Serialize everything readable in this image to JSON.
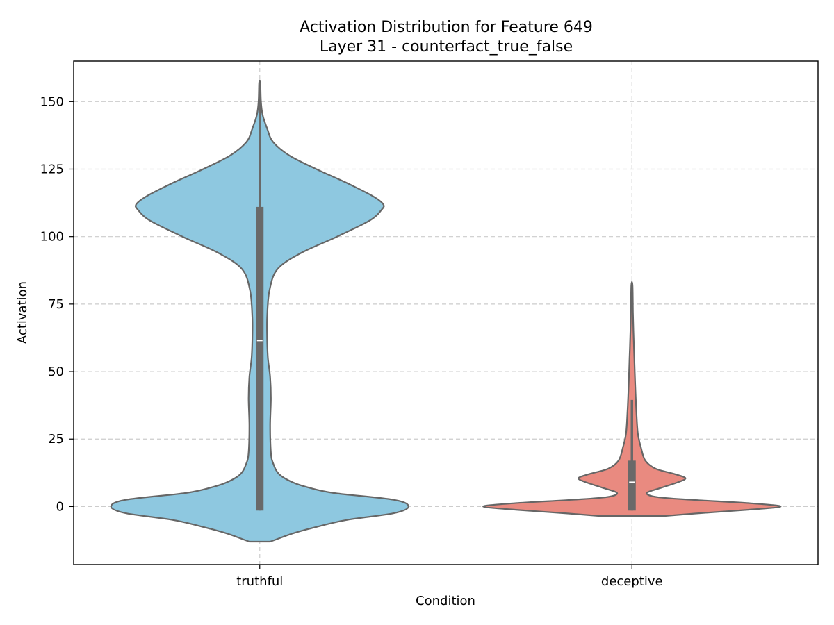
{
  "chart_data": {
    "type": "violin",
    "title": "Activation Distribution for Feature 649",
    "subtitle": "Layer 31 - counterfact_true_false",
    "xlabel": "Condition",
    "ylabel": "Activation",
    "categories": [
      "truthful",
      "deceptive"
    ],
    "ylim": [
      -21.5,
      165
    ],
    "yticks": [
      0,
      25,
      50,
      75,
      100,
      125,
      150
    ],
    "grid": true,
    "colors": {
      "truthful": "#8ec8e0",
      "deceptive": "#e98a80",
      "box": "#696969",
      "outline": "#666666"
    },
    "series": [
      {
        "category": "truthful",
        "min": -1.5,
        "q1": -1.5,
        "median": 61.5,
        "q3": 111,
        "whisker_high": 157,
        "density": [
          [
            -13,
            0.07
          ],
          [
            -12,
            0.12
          ],
          [
            -10,
            0.22
          ],
          [
            -8,
            0.35
          ],
          [
            -5,
            0.58
          ],
          [
            -2.5,
            0.9
          ],
          [
            0,
            1.0
          ],
          [
            2.5,
            0.9
          ],
          [
            5,
            0.5
          ],
          [
            7,
            0.33
          ],
          [
            9,
            0.22
          ],
          [
            12,
            0.13
          ],
          [
            16,
            0.09
          ],
          [
            20,
            0.075
          ],
          [
            30,
            0.07
          ],
          [
            40,
            0.075
          ],
          [
            48,
            0.07
          ],
          [
            55,
            0.055
          ],
          [
            62,
            0.05
          ],
          [
            70,
            0.05
          ],
          [
            80,
            0.065
          ],
          [
            88,
            0.12
          ],
          [
            94,
            0.28
          ],
          [
            100,
            0.52
          ],
          [
            106,
            0.74
          ],
          [
            110,
            0.82
          ],
          [
            112,
            0.83
          ],
          [
            115,
            0.76
          ],
          [
            120,
            0.58
          ],
          [
            125,
            0.38
          ],
          [
            130,
            0.2
          ],
          [
            135,
            0.09
          ],
          [
            140,
            0.05
          ],
          [
            145,
            0.02
          ],
          [
            150,
            0.008
          ],
          [
            157,
            0.004
          ]
        ]
      },
      {
        "category": "deceptive",
        "min": -1.5,
        "q1": -1.5,
        "median": 9,
        "q3": 17,
        "whisker_high": 39.5,
        "density": [
          [
            -3.5,
            0.22
          ],
          [
            -2.5,
            0.45
          ],
          [
            -1.2,
            0.78
          ],
          [
            0,
            1.0
          ],
          [
            1.2,
            0.8
          ],
          [
            2.5,
            0.4
          ],
          [
            3.5,
            0.17
          ],
          [
            5,
            0.1
          ],
          [
            7,
            0.2
          ],
          [
            9,
            0.31
          ],
          [
            10.5,
            0.36
          ],
          [
            12,
            0.29
          ],
          [
            14,
            0.16
          ],
          [
            17,
            0.09
          ],
          [
            22,
            0.06
          ],
          [
            27,
            0.04
          ],
          [
            35,
            0.03
          ],
          [
            45,
            0.022
          ],
          [
            55,
            0.016
          ],
          [
            65,
            0.01
          ],
          [
            72,
            0.007
          ],
          [
            82,
            0.004
          ]
        ]
      }
    ]
  }
}
